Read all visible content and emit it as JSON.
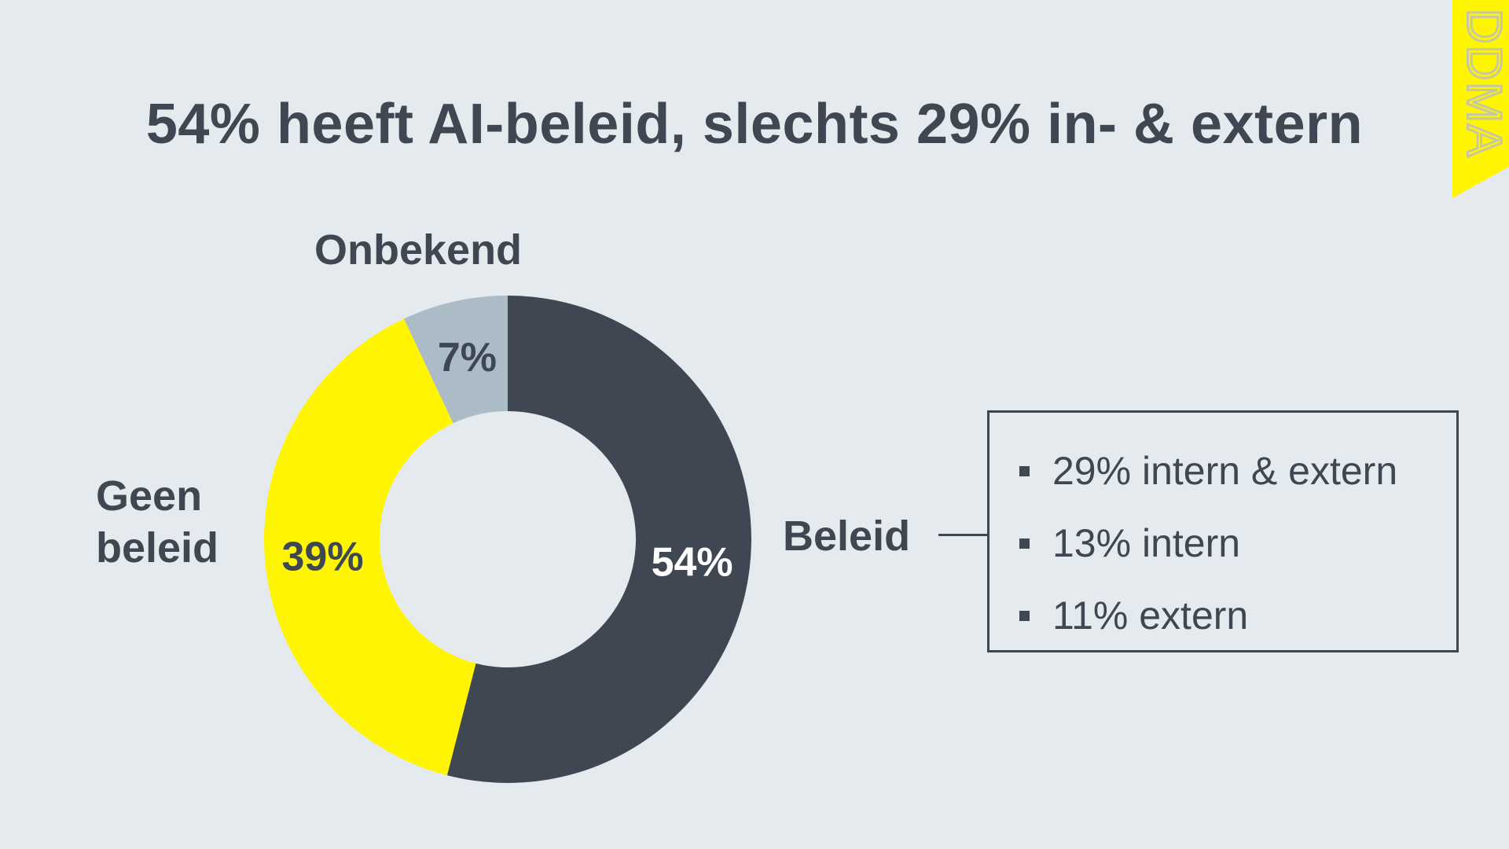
{
  "title": "54% heeft AI-beleid, slechts 29% in- & extern",
  "logo": {
    "text": "DDMA",
    "color": "#fff500"
  },
  "chart_data": {
    "type": "pie",
    "variant": "donut",
    "unit": "%",
    "slices": [
      {
        "label": "Beleid",
        "value": 54,
        "value_label": "54%",
        "color": "#3f4852",
        "value_label_color": "#ffffff"
      },
      {
        "label": "Geen beleid",
        "value": 39,
        "value_label": "39%",
        "color": "#fff500",
        "value_label_color": "#3f4852"
      },
      {
        "label": "Onbekend",
        "value": 7,
        "value_label": "7%",
        "color": "#acbcc6",
        "value_label_color": "#3f4852"
      }
    ],
    "start_angle_deg": 0,
    "direction": "clockwise"
  },
  "labels": {
    "onbekend": "Onbekend",
    "geen_line1": "Geen",
    "geen_line2": "beleid",
    "beleid": "Beleid"
  },
  "breakdown": {
    "items": [
      {
        "text": "29% intern & extern",
        "value": 29
      },
      {
        "text": "13% intern",
        "value": 13
      },
      {
        "text": "11% extern",
        "value": 11
      }
    ]
  },
  "colors": {
    "background": "#e5eaef",
    "text": "#3f4852",
    "accent": "#fff500"
  }
}
